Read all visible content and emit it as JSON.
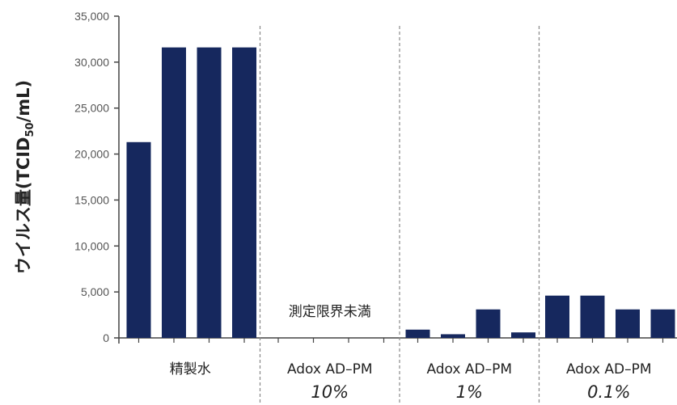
{
  "chart_data": {
    "type": "bar",
    "ylabel": "ウイルス量(TCID50/mL)",
    "ylabel_parts": {
      "main": "ウイルス量(TCID",
      "sub": "50",
      "tail": "/mL)"
    },
    "ylim": [
      0,
      35000
    ],
    "ytick_values": [
      0,
      5000,
      10000,
      15000,
      20000,
      25000,
      30000,
      35000
    ],
    "ytick_labels": [
      "0",
      "5,000",
      "10,000",
      "15,000",
      "20,000",
      "25,000",
      "30,000",
      "35,000"
    ],
    "groups": [
      {
        "label": "精製水",
        "concentration": "",
        "values": [
          21300,
          31600,
          31600,
          31600
        ]
      },
      {
        "label": "Adox AD–PM",
        "concentration": "10%",
        "values": [
          0,
          0,
          0,
          0
        ]
      },
      {
        "label": "Adox AD–PM",
        "concentration": "1%",
        "values": [
          900,
          400,
          3100,
          600
        ]
      },
      {
        "label": "Adox AD–PM",
        "concentration": "0.1%",
        "values": [
          4600,
          4600,
          3100,
          3100
        ]
      }
    ],
    "annotations": [
      {
        "text": "測定限界未満",
        "group": 1
      }
    ],
    "bar_color": "#16285e",
    "axis_color": "#444444",
    "separator_color": "#888888",
    "grid": false
  }
}
